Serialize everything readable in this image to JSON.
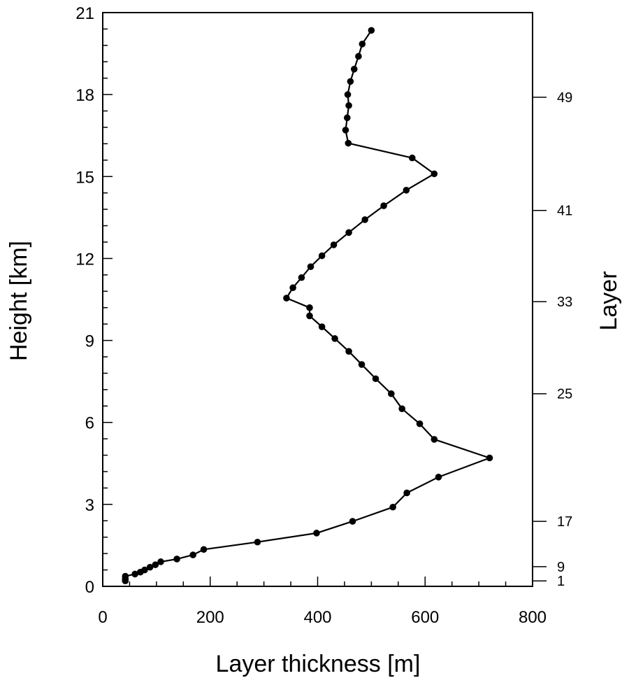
{
  "chart_data": {
    "type": "line",
    "xlabel": "Layer thickness [m]",
    "ylabel": "Height [km]",
    "y2label": "Layer",
    "xlim": [
      0,
      800
    ],
    "ylim": [
      0,
      21
    ],
    "xticks": [
      0,
      200,
      400,
      600,
      800
    ],
    "yticks": [
      0,
      3,
      6,
      9,
      12,
      15,
      18,
      21
    ],
    "y2ticks": [
      {
        "label": "1",
        "height": 0.2
      },
      {
        "label": "9",
        "height": 0.72
      },
      {
        "label": "17",
        "height": 2.38
      },
      {
        "label": "25",
        "height": 7.05
      },
      {
        "label": "33",
        "height": 10.42
      },
      {
        "label": "41",
        "height": 13.76
      },
      {
        "label": "49",
        "height": 17.9
      }
    ],
    "grid": false,
    "marker": "circle",
    "color": "#000000",
    "series": [
      {
        "x": [
          42,
          42,
          42,
          60,
          70,
          78,
          88,
          98,
          108,
          138,
          168,
          188,
          288,
          398,
          465,
          540,
          566,
          625,
          720,
          617,
          590,
          557,
          537,
          508,
          482,
          458,
          432,
          408,
          385,
          385,
          342,
          354,
          370,
          387,
          408,
          430,
          458,
          488,
          523,
          565,
          617,
          576,
          457,
          452,
          455,
          458,
          456,
          461,
          468,
          476,
          483,
          500
        ],
        "y": [
          0.2,
          0.28,
          0.37,
          0.45,
          0.52,
          0.6,
          0.7,
          0.79,
          0.9,
          1.0,
          1.15,
          1.35,
          1.62,
          1.95,
          2.38,
          2.9,
          3.42,
          4.0,
          4.7,
          5.38,
          5.95,
          6.5,
          7.05,
          7.6,
          8.12,
          8.6,
          9.07,
          9.5,
          9.9,
          10.2,
          10.55,
          10.93,
          11.3,
          11.7,
          12.1,
          12.5,
          12.95,
          13.42,
          13.93,
          14.5,
          15.1,
          15.68,
          16.22,
          16.7,
          17.15,
          17.6,
          18.0,
          18.48,
          18.93,
          19.4,
          19.85,
          20.35
        ]
      }
    ]
  }
}
